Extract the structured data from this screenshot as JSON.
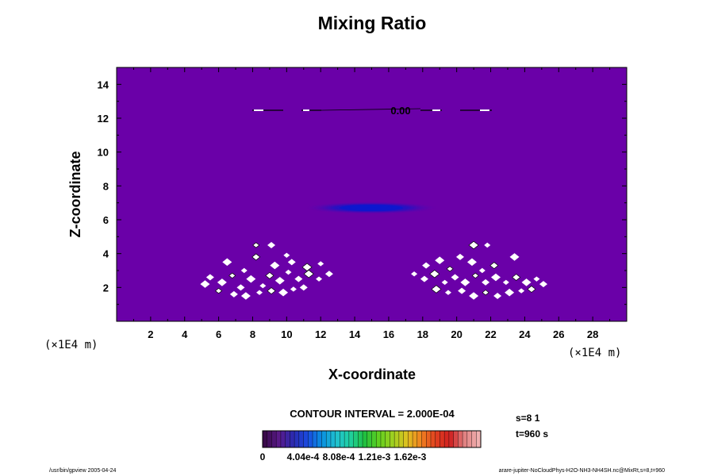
{
  "chart_data": {
    "type": "heatmap",
    "title": "Mixing Ratio",
    "xlabel": "X-coordinate",
    "ylabel": "Z-coordinate",
    "x_unit_label": "(×1E4 m)",
    "y_unit_label": "(×1E4 m)",
    "xlim": [
      0,
      30
    ],
    "ylim": [
      0,
      15
    ],
    "x_ticks": [
      2,
      4,
      6,
      8,
      10,
      12,
      14,
      16,
      18,
      20,
      22,
      24,
      26,
      28
    ],
    "y_ticks": [
      2,
      4,
      6,
      8,
      10,
      12,
      14
    ],
    "contour_label": "0.00",
    "contour_interval_text": "CONTOUR INTERVAL = 2.000E-04",
    "colorbar": {
      "tick_labels": [
        "0",
        "4.04e-4",
        "8.08e-4",
        "1.21e-3",
        "1.62e-3"
      ],
      "colors": [
        "#3a0a4a",
        "#5a1a8a",
        "#2a2ab0",
        "#1a4ae0",
        "#0a90e0",
        "#20c0d0",
        "#20d0a0",
        "#20c040",
        "#60d020",
        "#a0d020",
        "#e0c020",
        "#f08020",
        "#e04020",
        "#d02020",
        "#e08080",
        "#f0b0b0"
      ]
    },
    "field_color": "#6a00a8",
    "peak_color": "#1010c8"
  },
  "info": {
    "step": "s=8 1",
    "time": "t=960 s"
  },
  "footer": {
    "left": "/usr/bin/gpview 2005-04-24",
    "right": "arare-jupiter-NoCloudPhys-H2O-NH3-NH4SH.nc@MixRt,s=8,t=960"
  }
}
